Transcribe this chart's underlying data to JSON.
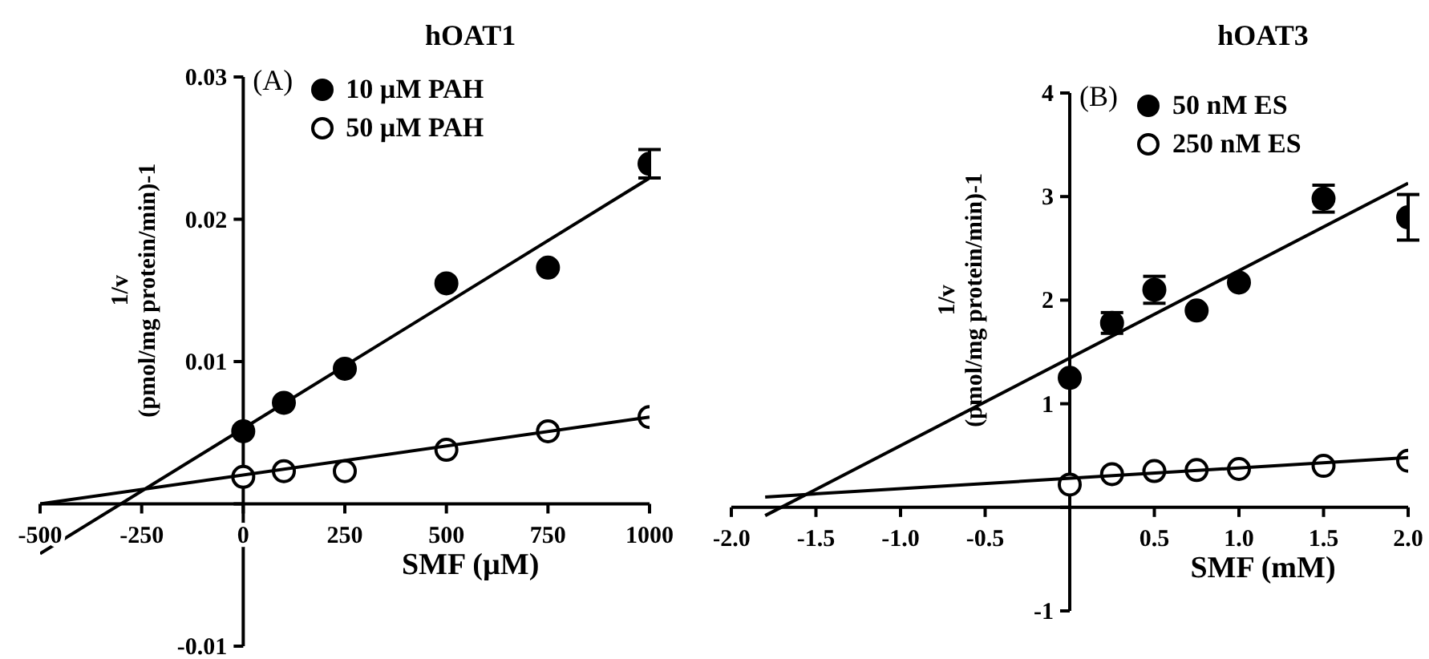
{
  "chart_data": [
    {
      "type": "scatter",
      "title": "hOAT1",
      "xlabel": "SMF (µM)",
      "ylabel": "1/v\n(pmol/mg protein/min)-1",
      "annotations": [
        "(A)"
      ],
      "xlim": [
        -500,
        1000
      ],
      "xticks": [
        -500,
        -250,
        0,
        250,
        500,
        750,
        1000
      ],
      "ylim": [
        -0.01,
        0.03
      ],
      "yticks": [
        -0.01,
        {
          "value": 0,
          "label": null
        },
        0.01,
        0.02,
        0.03
      ],
      "legend": "top",
      "marker": "circle",
      "grid": false,
      "series": [
        {
          "name": "10 µM PAH",
          "color": "#000000",
          "x": [
            0,
            100,
            250,
            500,
            750,
            1000
          ],
          "values": [
            0.0051,
            0.0071,
            0.0095,
            0.0155,
            0.0166,
            0.0239
          ],
          "errors": [
            null,
            null,
            null,
            null,
            null,
            0.001
          ]
        },
        {
          "name": "50 µM PAH",
          "color": "#ffffff",
          "x": [
            0,
            100,
            250,
            500,
            750,
            1000
          ],
          "values": [
            0.0019,
            0.0023,
            0.0023,
            0.0038,
            0.0051,
            0.0061
          ]
        },
        {
          "type": "line",
          "color": "#000000",
          "marker": "none",
          "x": [
            -500,
            1000
          ],
          "values": [
            -0.0035,
            0.0229
          ]
        },
        {
          "type": "line",
          "color": "#000000",
          "marker": "none",
          "x": [
            -500,
            1000
          ],
          "values": [
            0.0,
            0.0061
          ]
        }
      ]
    },
    {
      "type": "scatter",
      "title": "hOAT3",
      "xlabel": "SMF (mM)",
      "ylabel": "1/v\n(pmol/mg protein/min)-1",
      "annotations": [
        "(B)"
      ],
      "xlim": [
        -2,
        2
      ],
      "xticks": [
        {
          "value": -2,
          "label": "-2.0"
        },
        {
          "value": -1.5,
          "label": "-1.5"
        },
        {
          "value": -1,
          "label": "-1.0"
        },
        {
          "value": -0.5,
          "label": "-0.5"
        },
        {
          "value": 0,
          "label": null
        },
        {
          "value": 0.5,
          "label": "0.5"
        },
        {
          "value": 1,
          "label": "1.0"
        },
        {
          "value": 1.5,
          "label": "1.5"
        },
        {
          "value": 2,
          "label": "2.0"
        }
      ],
      "ylim": [
        -1,
        4
      ],
      "yticks": [
        -1,
        {
          "value": 0,
          "label": null
        },
        1,
        2,
        3,
        4
      ],
      "legend": "top",
      "marker": "circle",
      "grid": false,
      "series": [
        {
          "name": "50 nM ES",
          "color": "#000000",
          "x": [
            0,
            0.25,
            0.5,
            0.75,
            1.0,
            1.5,
            2.0
          ],
          "values": [
            1.25,
            1.78,
            2.1,
            1.9,
            2.17,
            2.98,
            2.8
          ],
          "errors": [
            null,
            0.1,
            0.13,
            null,
            null,
            0.13,
            0.22
          ]
        },
        {
          "name": "250 nM ES",
          "color": "#ffffff",
          "x": [
            0,
            0.25,
            0.5,
            0.75,
            1.0,
            1.5,
            2.0
          ],
          "values": [
            0.22,
            0.32,
            0.35,
            0.36,
            0.37,
            0.4,
            0.45
          ]
        },
        {
          "type": "line",
          "color": "#000000",
          "marker": "none",
          "x": [
            -1.8,
            2.0
          ],
          "values": [
            -0.08,
            3.13
          ]
        },
        {
          "type": "line",
          "color": "#000000",
          "marker": "none",
          "x": [
            -1.8,
            2.0
          ],
          "values": [
            0.1,
            0.48
          ]
        }
      ]
    }
  ]
}
